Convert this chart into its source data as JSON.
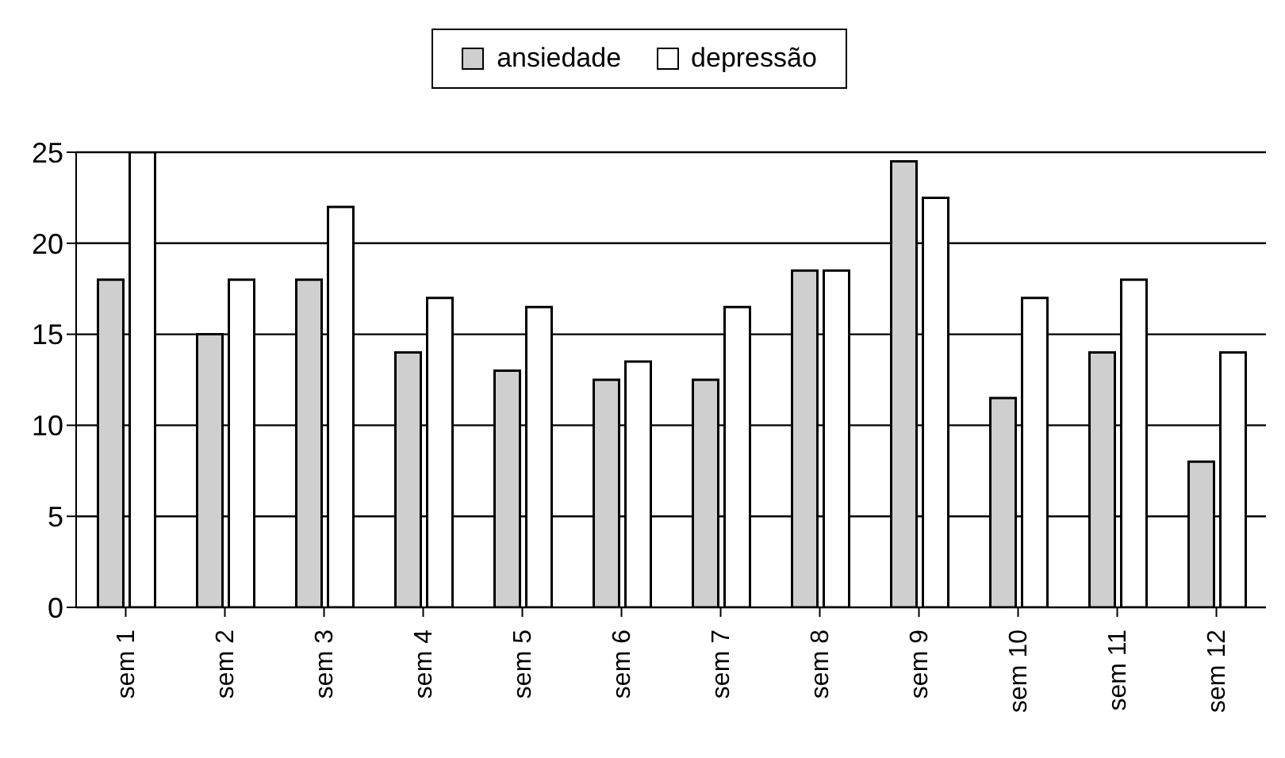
{
  "chart_data": {
    "type": "bar",
    "categories": [
      "sem 1",
      "sem 2",
      "sem 3",
      "sem 4",
      "sem 5",
      "sem 6",
      "sem 7",
      "sem 8",
      "sem 9",
      "sem 10",
      "sem 11",
      "sem 12"
    ],
    "series": [
      {
        "name": "ansiedade",
        "color": "#cfcfcf",
        "values": [
          18,
          15,
          18,
          14,
          13,
          12.5,
          12.5,
          18.5,
          24.5,
          11.5,
          14,
          8
        ]
      },
      {
        "name": "depressão",
        "color": "#ffffff",
        "values": [
          25,
          18,
          22,
          17,
          16.5,
          13.5,
          16.5,
          18.5,
          22.5,
          17,
          18,
          14
        ]
      }
    ],
    "ylim": [
      0,
      25
    ],
    "yticks": [
      0,
      5,
      10,
      15,
      20,
      25
    ],
    "grid": "y",
    "legend": "top"
  }
}
